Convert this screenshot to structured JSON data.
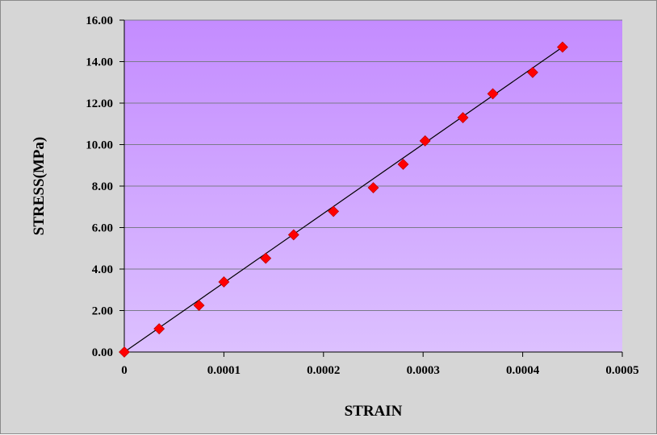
{
  "chart_data": {
    "type": "scatter",
    "title": "",
    "xlabel": "STRAIN",
    "ylabel": "STRESS(MPa)",
    "xlim": [
      0,
      0.0005
    ],
    "ylim": [
      0,
      16
    ],
    "x_ticks": [
      "0",
      "0.0001",
      "0.0002",
      "0.0003",
      "0.0004",
      "0.0005"
    ],
    "x_tick_values": [
      0,
      0.0001,
      0.0002,
      0.0003,
      0.0004,
      0.0005
    ],
    "y_ticks": [
      "0.00",
      "2.00",
      "4.00",
      "6.00",
      "8.00",
      "10.00",
      "12.00",
      "14.00",
      "16.00"
    ],
    "y_tick_values": [
      0,
      2,
      4,
      6,
      8,
      10,
      12,
      14,
      16
    ],
    "grid": "horizontal",
    "legend": "none",
    "series": [
      {
        "marker": "diamond",
        "color": "#ff0000",
        "x": [
          0,
          3.5e-05,
          7.5e-05,
          0.0001,
          0.000142,
          0.00017,
          0.00021,
          0.00025,
          0.00028,
          0.000302,
          0.00034,
          0.00037,
          0.00041,
          0.00044
        ],
        "y": [
          0,
          1.12,
          2.25,
          3.38,
          4.52,
          5.65,
          6.78,
          7.92,
          9.05,
          10.18,
          11.3,
          12.45,
          13.48,
          14.7
        ]
      }
    ],
    "trendline": {
      "type": "linear",
      "color": "#000000",
      "x": [
        0,
        0.00044
      ],
      "y": [
        0,
        14.7
      ]
    },
    "plot_background": {
      "top": "#c48cff",
      "bottom": "#dcc0ff"
    }
  }
}
